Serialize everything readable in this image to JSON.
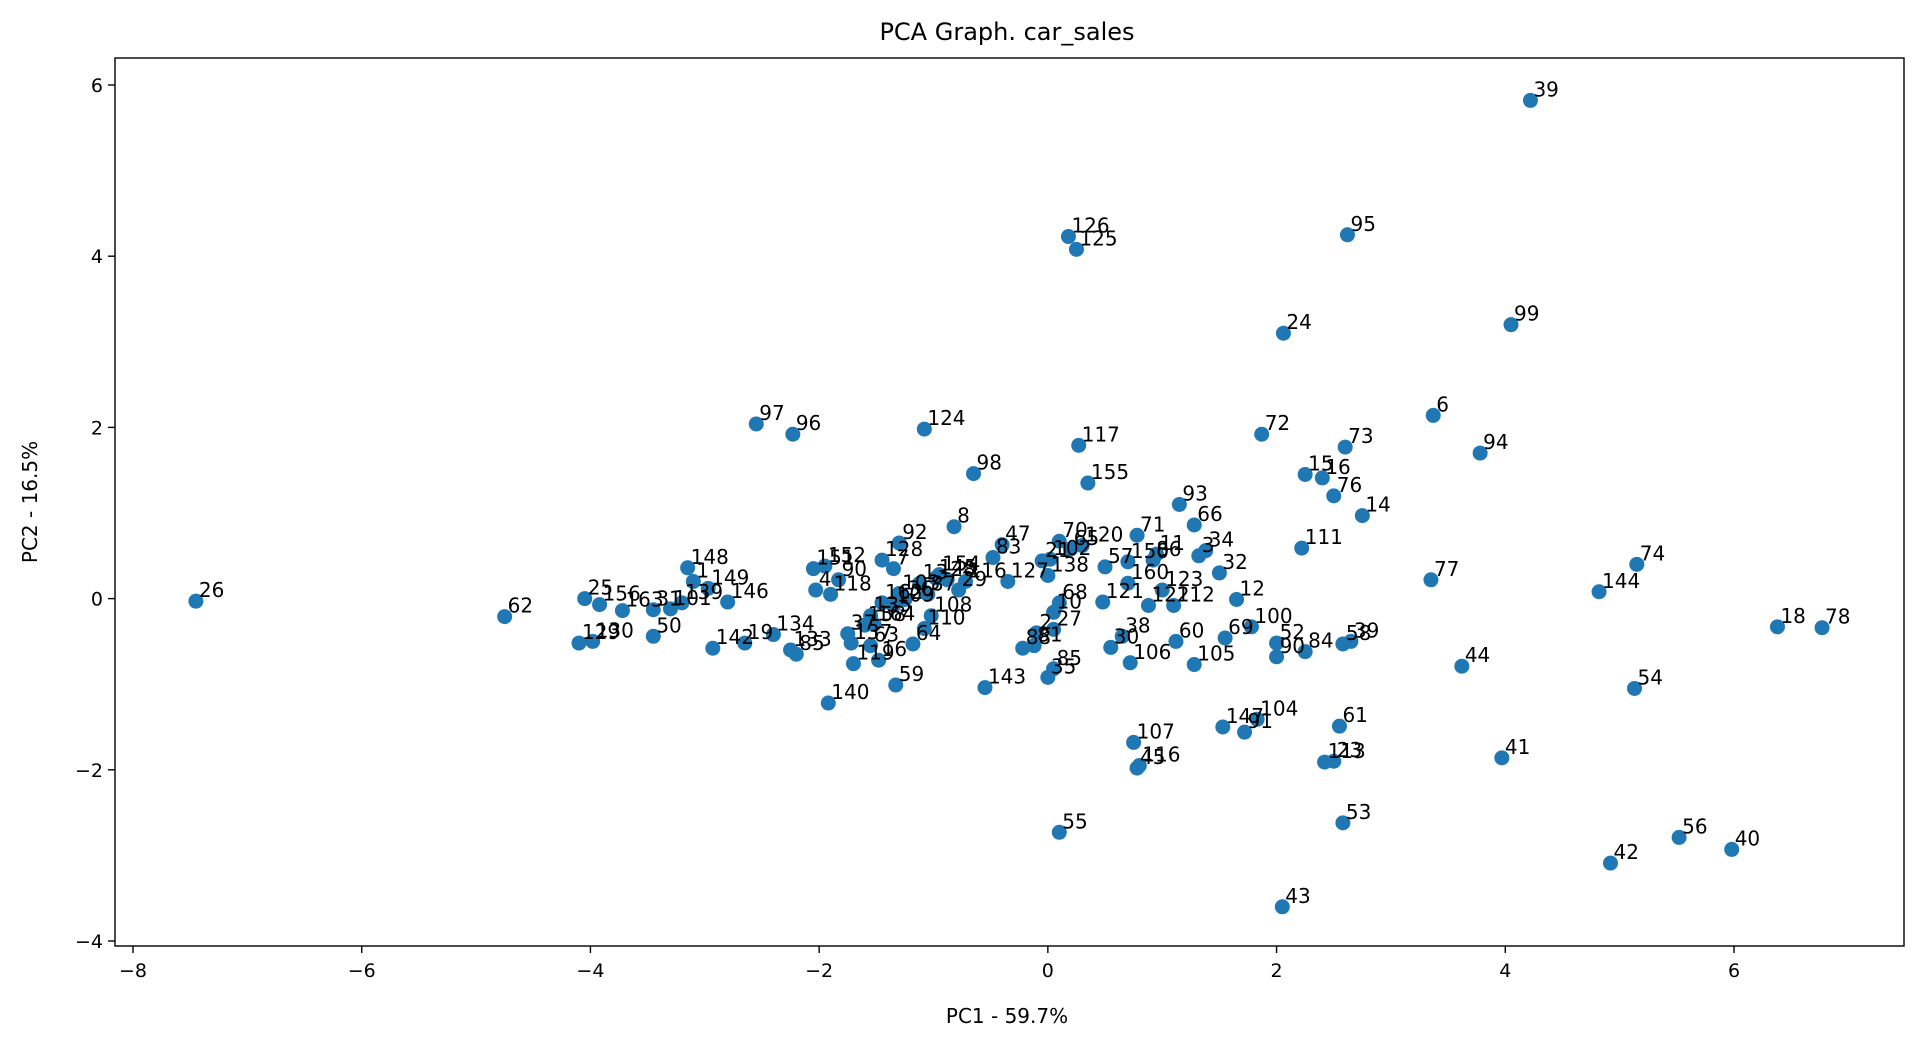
{
  "chart_data": {
    "type": "scatter",
    "title": "PCA Graph. car_sales",
    "xlabel": "PC1 - 59.7%",
    "ylabel": "PC2 - 16.5%",
    "xlim": [
      -8.2,
      7.4
    ],
    "ylim": [
      -4.1,
      6.3
    ],
    "xticks": [
      -8,
      -6,
      -4,
      -2,
      0,
      2,
      4,
      6
    ],
    "yticks": [
      -4,
      -2,
      0,
      2,
      4,
      6
    ],
    "marker_color": "#1f77b4",
    "grid": false,
    "points": [
      {
        "label": "26",
        "x": -7.45,
        "y": -0.03
      },
      {
        "label": "62",
        "x": -4.75,
        "y": -0.21
      },
      {
        "label": "25",
        "x": -4.05,
        "y": 0.0
      },
      {
        "label": "156",
        "x": -3.92,
        "y": -0.07
      },
      {
        "label": "163",
        "x": -3.72,
        "y": -0.14
      },
      {
        "label": "31",
        "x": -3.45,
        "y": -0.13
      },
      {
        "label": "129",
        "x": -4.1,
        "y": -0.52
      },
      {
        "label": "130",
        "x": -3.98,
        "y": -0.5
      },
      {
        "label": "50",
        "x": -3.45,
        "y": -0.44
      },
      {
        "label": "148",
        "x": -3.15,
        "y": 0.36
      },
      {
        "label": "1",
        "x": -3.1,
        "y": 0.2
      },
      {
        "label": "149",
        "x": -2.97,
        "y": 0.12
      },
      {
        "label": "139",
        "x": -3.2,
        "y": -0.05
      },
      {
        "label": "101",
        "x": -3.3,
        "y": -0.12
      },
      {
        "label": "146",
        "x": -2.8,
        "y": -0.04
      },
      {
        "label": "142",
        "x": -2.93,
        "y": -0.58
      },
      {
        "label": "19",
        "x": -2.65,
        "y": -0.52
      },
      {
        "label": "134",
        "x": -2.4,
        "y": -0.42
      },
      {
        "label": "133",
        "x": -2.25,
        "y": -0.6
      },
      {
        "label": "85",
        "x": -2.2,
        "y": -0.65
      },
      {
        "label": "97",
        "x": -2.55,
        "y": 2.04
      },
      {
        "label": "96",
        "x": -2.23,
        "y": 1.92
      },
      {
        "label": "151",
        "x": -2.05,
        "y": 0.35
      },
      {
        "label": "152",
        "x": -1.95,
        "y": 0.38
      },
      {
        "label": "4",
        "x": -2.03,
        "y": 0.1
      },
      {
        "label": "118",
        "x": -1.9,
        "y": 0.05
      },
      {
        "label": "90",
        "x": -1.83,
        "y": 0.22
      },
      {
        "label": "137",
        "x": -1.72,
        "y": -0.52
      },
      {
        "label": "158",
        "x": -1.6,
        "y": -0.31
      },
      {
        "label": "164",
        "x": -1.52,
        "y": -0.3
      },
      {
        "label": "7",
        "x": -1.35,
        "y": 0.35
      },
      {
        "label": "92",
        "x": -1.3,
        "y": 0.65
      },
      {
        "label": "128",
        "x": -1.45,
        "y": 0.45
      },
      {
        "label": "8",
        "x": -0.82,
        "y": 0.84
      },
      {
        "label": "124",
        "x": -1.08,
        "y": 1.98
      },
      {
        "label": "98",
        "x": -0.65,
        "y": 1.46
      },
      {
        "label": "140",
        "x": -1.92,
        "y": -1.22
      },
      {
        "label": "59",
        "x": -1.33,
        "y": -1.01
      },
      {
        "label": "119",
        "x": -1.7,
        "y": -0.76
      },
      {
        "label": "16",
        "x": -1.48,
        "y": -0.72
      },
      {
        "label": "63",
        "x": -1.55,
        "y": -0.55
      },
      {
        "label": "64",
        "x": -1.18,
        "y": -0.53
      },
      {
        "label": "37",
        "x": -1.75,
        "y": -0.41
      },
      {
        "label": "135",
        "x": -1.55,
        "y": -0.2
      },
      {
        "label": "162",
        "x": -1.45,
        "y": -0.05
      },
      {
        "label": "109",
        "x": -1.35,
        "y": -0.08
      },
      {
        "label": "36",
        "x": -1.25,
        "y": -0.01
      },
      {
        "label": "103",
        "x": -1.3,
        "y": 0.06
      },
      {
        "label": "110",
        "x": -1.08,
        "y": -0.35
      },
      {
        "label": "108",
        "x": -1.02,
        "y": -0.2
      },
      {
        "label": "87",
        "x": -1.05,
        "y": 0.05
      },
      {
        "label": "13",
        "x": -1.12,
        "y": 0.18
      },
      {
        "label": "145",
        "x": -0.98,
        "y": 0.24
      },
      {
        "label": "28",
        "x": -0.88,
        "y": 0.22
      },
      {
        "label": "29",
        "x": -0.78,
        "y": 0.1
      },
      {
        "label": "154",
        "x": -0.95,
        "y": 0.28
      },
      {
        "label": "116",
        "x": -0.72,
        "y": 0.2
      },
      {
        "label": "47",
        "x": -0.4,
        "y": 0.63
      },
      {
        "label": "83",
        "x": -0.48,
        "y": 0.48
      },
      {
        "label": "127",
        "x": -0.35,
        "y": 0.2
      },
      {
        "label": "143",
        "x": -0.55,
        "y": -1.04
      },
      {
        "label": "35",
        "x": 0.0,
        "y": -0.92
      },
      {
        "label": "85b",
        "x": 0.05,
        "y": -0.82
      },
      {
        "label": "88",
        "x": -0.22,
        "y": -0.58
      },
      {
        "label": "81",
        "x": -0.12,
        "y": -0.55
      },
      {
        "label": "2",
        "x": -0.1,
        "y": -0.4
      },
      {
        "label": "27",
        "x": 0.05,
        "y": -0.36
      },
      {
        "label": "10",
        "x": 0.05,
        "y": -0.16
      },
      {
        "label": "68",
        "x": 0.1,
        "y": -0.05
      },
      {
        "label": "21",
        "x": -0.05,
        "y": 0.44
      },
      {
        "label": "102",
        "x": 0.02,
        "y": 0.46
      },
      {
        "label": "138",
        "x": 0.0,
        "y": 0.27
      },
      {
        "label": "70",
        "x": 0.1,
        "y": 0.67
      },
      {
        "label": "65",
        "x": 0.2,
        "y": 0.58
      },
      {
        "label": "120",
        "x": 0.3,
        "y": 0.62
      },
      {
        "label": "126",
        "x": 0.18,
        "y": 4.23
      },
      {
        "label": "125",
        "x": 0.25,
        "y": 4.08
      },
      {
        "label": "117",
        "x": 0.27,
        "y": 1.79
      },
      {
        "label": "155",
        "x": 0.35,
        "y": 1.35
      },
      {
        "label": "55",
        "x": 0.1,
        "y": -2.73
      },
      {
        "label": "30",
        "x": 0.55,
        "y": -0.57
      },
      {
        "label": "38",
        "x": 0.65,
        "y": -0.44
      },
      {
        "label": "106",
        "x": 0.72,
        "y": -0.75
      },
      {
        "label": "121",
        "x": 0.48,
        "y": -0.04
      },
      {
        "label": "122",
        "x": 0.88,
        "y": -0.08
      },
      {
        "label": "112",
        "x": 1.1,
        "y": -0.08
      },
      {
        "label": "123",
        "x": 1.0,
        "y": 0.1
      },
      {
        "label": "160",
        "x": 0.7,
        "y": 0.18
      },
      {
        "label": "57",
        "x": 0.5,
        "y": 0.37
      },
      {
        "label": "150",
        "x": 0.7,
        "y": 0.43
      },
      {
        "label": "71",
        "x": 0.78,
        "y": 0.74
      },
      {
        "label": "11",
        "x": 0.95,
        "y": 0.52
      },
      {
        "label": "86",
        "x": 0.92,
        "y": 0.45
      },
      {
        "label": "93",
        "x": 1.15,
        "y": 1.1
      },
      {
        "label": "66",
        "x": 1.28,
        "y": 0.86
      },
      {
        "label": "3",
        "x": 1.32,
        "y": 0.5
      },
      {
        "label": "34",
        "x": 1.38,
        "y": 0.56
      },
      {
        "label": "32",
        "x": 1.5,
        "y": 0.3
      },
      {
        "label": "12",
        "x": 1.65,
        "y": -0.01
      },
      {
        "label": "60",
        "x": 1.12,
        "y": -0.5
      },
      {
        "label": "105",
        "x": 1.28,
        "y": -0.77
      },
      {
        "label": "69",
        "x": 1.55,
        "y": -0.46
      },
      {
        "label": "100",
        "x": 1.78,
        "y": -0.33
      },
      {
        "label": "52",
        "x": 2.0,
        "y": -0.52
      },
      {
        "label": "90b",
        "x": 2.0,
        "y": -0.68
      },
      {
        "label": "84",
        "x": 2.25,
        "y": -0.62
      },
      {
        "label": "58",
        "x": 2.58,
        "y": -0.53
      },
      {
        "label": "39b",
        "x": 2.65,
        "y": -0.5
      },
      {
        "label": "107",
        "x": 0.75,
        "y": -1.68
      },
      {
        "label": "45",
        "x": 0.78,
        "y": -1.98
      },
      {
        "label": "116b",
        "x": 0.8,
        "y": -1.95
      },
      {
        "label": "147",
        "x": 1.53,
        "y": -1.5
      },
      {
        "label": "91",
        "x": 1.72,
        "y": -1.56
      },
      {
        "label": "104",
        "x": 1.83,
        "y": -1.41
      },
      {
        "label": "61",
        "x": 2.55,
        "y": -1.49
      },
      {
        "label": "113",
        "x": 2.42,
        "y": -1.91
      },
      {
        "label": "23",
        "x": 2.5,
        "y": -1.9
      },
      {
        "label": "53",
        "x": 2.58,
        "y": -2.62
      },
      {
        "label": "43",
        "x": 2.05,
        "y": -3.6
      },
      {
        "label": "111",
        "x": 2.22,
        "y": 0.59
      },
      {
        "label": "72",
        "x": 1.87,
        "y": 1.92
      },
      {
        "label": "24",
        "x": 2.06,
        "y": 3.1
      },
      {
        "label": "15",
        "x": 2.25,
        "y": 1.45
      },
      {
        "label": "16b",
        "x": 2.4,
        "y": 1.41
      },
      {
        "label": "76",
        "x": 2.5,
        "y": 1.2
      },
      {
        "label": "73",
        "x": 2.6,
        "y": 1.77
      },
      {
        "label": "14",
        "x": 2.75,
        "y": 0.97
      },
      {
        "label": "95",
        "x": 2.62,
        "y": 4.25
      },
      {
        "label": "39",
        "x": 4.22,
        "y": 5.82
      },
      {
        "label": "99",
        "x": 4.05,
        "y": 3.2
      },
      {
        "label": "6",
        "x": 3.37,
        "y": 2.14
      },
      {
        "label": "94",
        "x": 3.78,
        "y": 1.7
      },
      {
        "label": "77",
        "x": 3.35,
        "y": 0.22
      },
      {
        "label": "44",
        "x": 3.62,
        "y": -0.79
      },
      {
        "label": "41",
        "x": 3.97,
        "y": -1.86
      },
      {
        "label": "144",
        "x": 4.82,
        "y": 0.08
      },
      {
        "label": "74",
        "x": 5.15,
        "y": 0.4
      },
      {
        "label": "54",
        "x": 5.13,
        "y": -1.05
      },
      {
        "label": "42",
        "x": 4.92,
        "y": -3.09
      },
      {
        "label": "56",
        "x": 5.52,
        "y": -2.79
      },
      {
        "label": "40",
        "x": 5.98,
        "y": -2.93
      },
      {
        "label": "18",
        "x": 6.38,
        "y": -0.33
      },
      {
        "label": "78",
        "x": 6.77,
        "y": -0.34
      }
    ]
  }
}
